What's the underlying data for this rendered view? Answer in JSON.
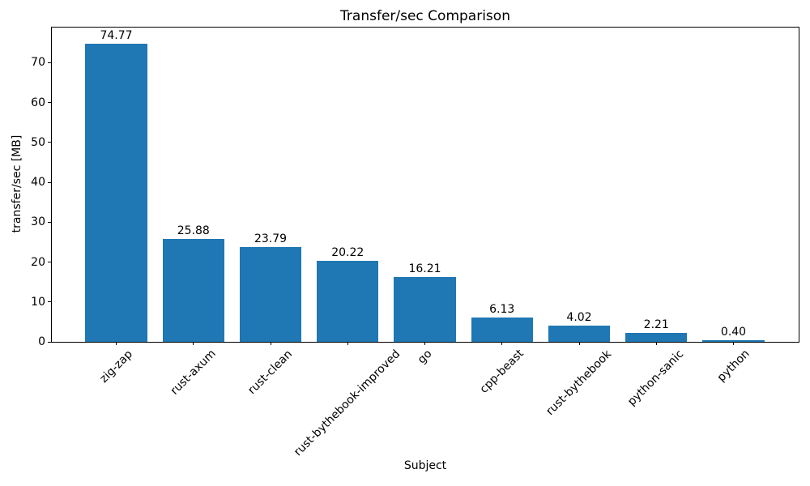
{
  "chart_data": {
    "type": "bar",
    "title": "Transfer/sec Comparison",
    "xlabel": "Subject",
    "ylabel": "transfer/sec [MB]",
    "categories": [
      "zig-zap",
      "rust-axum",
      "rust-clean",
      "rust-bythebook-improved",
      "go",
      "cpp-beast",
      "rust-bythebook",
      "python-sanic",
      "python"
    ],
    "values": [
      74.77,
      25.88,
      23.79,
      20.22,
      16.21,
      6.13,
      4.02,
      2.21,
      0.4
    ],
    "value_labels": [
      "74.77",
      "25.88",
      "23.79",
      "20.22",
      "16.21",
      "6.13",
      "4.02",
      "2.21",
      "0.40"
    ],
    "yticks": [
      0,
      10,
      20,
      30,
      40,
      50,
      60,
      70
    ],
    "ylim": [
      0,
      79
    ],
    "bar_color": "#1f77b4",
    "axis_color": "#000000",
    "text_color": "#000000",
    "x_tick_rotation_deg": 45,
    "grid": false,
    "legend": null
  }
}
